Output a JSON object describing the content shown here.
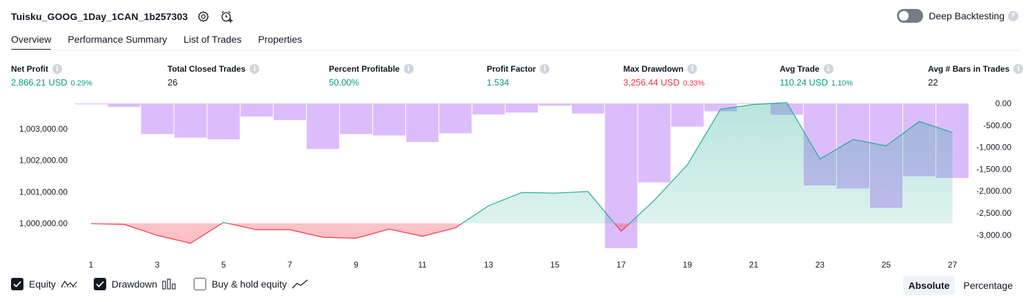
{
  "header": {
    "strategy_name": "Tuisku_GOOG_1Day_1CAN_1b257303",
    "settings_icon": "gear-icon",
    "alert_icon": "add-alarm-icon"
  },
  "deep_backtesting": {
    "label": "Deep Backtesting",
    "enabled": false,
    "help": "?"
  },
  "tabs": [
    {
      "label": "Overview",
      "active": true
    },
    {
      "label": "Performance Summary",
      "active": false
    },
    {
      "label": "List of Trades",
      "active": false
    },
    {
      "label": "Properties",
      "active": false
    }
  ],
  "metrics": {
    "net_profit": {
      "label": "Net Profit",
      "value": "2,866.21 USD",
      "pct": "0.29%"
    },
    "total_closed_trades": {
      "label": "Total Closed Trades",
      "value": "26"
    },
    "percent_profitable": {
      "label": "Percent Profitable",
      "value": "50.00%"
    },
    "profit_factor": {
      "label": "Profit Factor",
      "value": "1.534"
    },
    "max_drawdown": {
      "label": "Max Drawdown",
      "value": "3,256.44 USD",
      "pct": "0.33%"
    },
    "avg_trade": {
      "label": "Avg Trade",
      "value": "110.24 USD",
      "pct": "1.10%"
    },
    "avg_bars": {
      "label": "Avg # Bars in Trades",
      "value": "22"
    }
  },
  "colors": {
    "profit": "#089981",
    "loss": "#f23645",
    "drawdown_bar": "#dcbdfb",
    "equity_line_up": "#22ab94",
    "equity_line_down": "#f23645"
  },
  "chart_data": {
    "type": "line",
    "x": [
      1,
      2,
      3,
      4,
      5,
      6,
      7,
      8,
      9,
      10,
      11,
      12,
      13,
      14,
      15,
      16,
      17,
      18,
      19,
      20,
      21,
      22,
      23,
      24,
      25,
      26,
      27
    ],
    "x_tick_labels": [
      "1",
      "3",
      "5",
      "7",
      "9",
      "11",
      "13",
      "15",
      "17",
      "19",
      "21",
      "23",
      "25",
      "27"
    ],
    "left_axis": {
      "ticks": [
        "1,003,000.00",
        "1,002,000.00",
        "1,001,000.00",
        "1,000,000.00"
      ],
      "tick_values": [
        1003000,
        1002000,
        1001000,
        1000000
      ]
    },
    "right_axis": {
      "ticks": [
        "0.00",
        "-500.00",
        "-1,000.00",
        "-1,500.00",
        "-2,000.00",
        "-2,500.00",
        "-3,000.00"
      ],
      "tick_values": [
        0,
        -500,
        -1000,
        -1500,
        -2000,
        -2500,
        -3000
      ],
      "inverted": true
    },
    "baseline": 1000000,
    "series": [
      {
        "name": "Equity",
        "axis": "left",
        "values": [
          999990,
          999970,
          999620,
          999370,
          1000030,
          999800,
          999800,
          999560,
          999530,
          999820,
          999590,
          999860,
          1000560,
          1000980,
          1000960,
          1001010,
          999750,
          1000730,
          1001860,
          1003620,
          1003770,
          1003830,
          1002040,
          1002660,
          1002460,
          1003230,
          1002880
        ]
      },
      {
        "name": "Drawdown",
        "axis": "right",
        "type": "bar",
        "values": [
          -20,
          -80,
          -700,
          -780,
          -820,
          -300,
          -380,
          -1040,
          -700,
          -730,
          -880,
          -680,
          -250,
          -210,
          -50,
          -230,
          -3300,
          -1800,
          -530,
          -180,
          -10,
          -260,
          -1870,
          -1940,
          -2380,
          -1660,
          -1700
        ]
      }
    ],
    "grid": false,
    "legend_position": "bottom-left"
  },
  "legend": {
    "equity": {
      "label": "Equity",
      "checked": true,
      "icon": "line-chart-icon"
    },
    "drawdown": {
      "label": "Drawdown",
      "checked": true,
      "icon": "bar-chart-icon"
    },
    "buy_hold": {
      "label": "Buy & hold equity",
      "checked": false,
      "icon": "trend-line-icon"
    }
  },
  "modes": [
    {
      "label": "Absolute",
      "active": true
    },
    {
      "label": "Percentage",
      "active": false
    }
  ]
}
